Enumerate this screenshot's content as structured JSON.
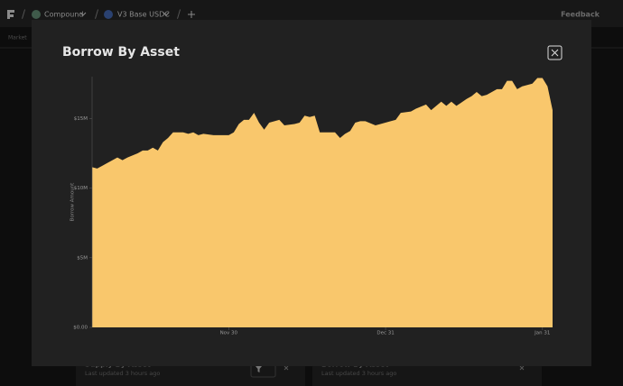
{
  "nav": {
    "protocol": "Compound",
    "market": "V3 Base USDC",
    "feedback": "Feedback",
    "subnav": "Market"
  },
  "cards": [
    {
      "title": "Supply By Asset",
      "updated": "Last updated 3 hours ago"
    },
    {
      "title": "Borrow By Asset",
      "updated": "Last updated 3 hours ago"
    }
  ],
  "chart_data": {
    "type": "area",
    "title": "Borrow By Asset",
    "y_label": "Borrow Amount",
    "color": "#f9c76c",
    "x": [
      0,
      1,
      2,
      3,
      5,
      6,
      7,
      9,
      10,
      11,
      12,
      13,
      14,
      15,
      16,
      18,
      19,
      20,
      21,
      22,
      24,
      25,
      27,
      28,
      29,
      30,
      31,
      32,
      33,
      34,
      35,
      37,
      38,
      40,
      41,
      42,
      43,
      44,
      45,
      47,
      48,
      49,
      50,
      51,
      52,
      53,
      54,
      56,
      57,
      59,
      60,
      61,
      63,
      64,
      66,
      67,
      69,
      70,
      71,
      72,
      74,
      75,
      76,
      77,
      78,
      80,
      81,
      82,
      83,
      84,
      85,
      87,
      88,
      89,
      90,
      91
    ],
    "values": [
      11500000,
      11400000,
      11600000,
      11800000,
      12200000,
      12000000,
      12200000,
      12500000,
      12700000,
      12700000,
      12900000,
      12700000,
      13300000,
      13600000,
      14000000,
      14000000,
      13900000,
      14000000,
      13800000,
      13900000,
      13800000,
      13800000,
      13800000,
      14000000,
      14600000,
      14900000,
      14900000,
      15400000,
      14700000,
      14200000,
      14700000,
      14900000,
      14500000,
      14600000,
      14700000,
      15200000,
      15100000,
      15200000,
      14000000,
      14000000,
      14000000,
      13600000,
      13900000,
      14100000,
      14700000,
      14800000,
      14800000,
      14500000,
      14600000,
      14800000,
      14900000,
      15400000,
      15500000,
      15700000,
      16000000,
      15600000,
      16200000,
      15900000,
      16200000,
      15900000,
      16400000,
      16600000,
      16900000,
      16600000,
      16700000,
      17100000,
      17100000,
      17700000,
      17700000,
      17100000,
      17300000,
      17500000,
      17900000,
      17900000,
      17300000,
      15600000
    ],
    "xlim": [
      0,
      91
    ],
    "xticks": [
      {
        "value": 27,
        "label": "Nov 30"
      },
      {
        "value": 58,
        "label": "Dec 31"
      },
      {
        "value": 89,
        "label": "Jan 31"
      }
    ],
    "ylim": [
      0,
      18000000
    ],
    "yticks": [
      {
        "value": 0,
        "label": "$0.00"
      },
      {
        "value": 5000000,
        "label": "$5M"
      },
      {
        "value": 10000000,
        "label": "$10M"
      },
      {
        "value": 15000000,
        "label": "$15M"
      }
    ]
  }
}
